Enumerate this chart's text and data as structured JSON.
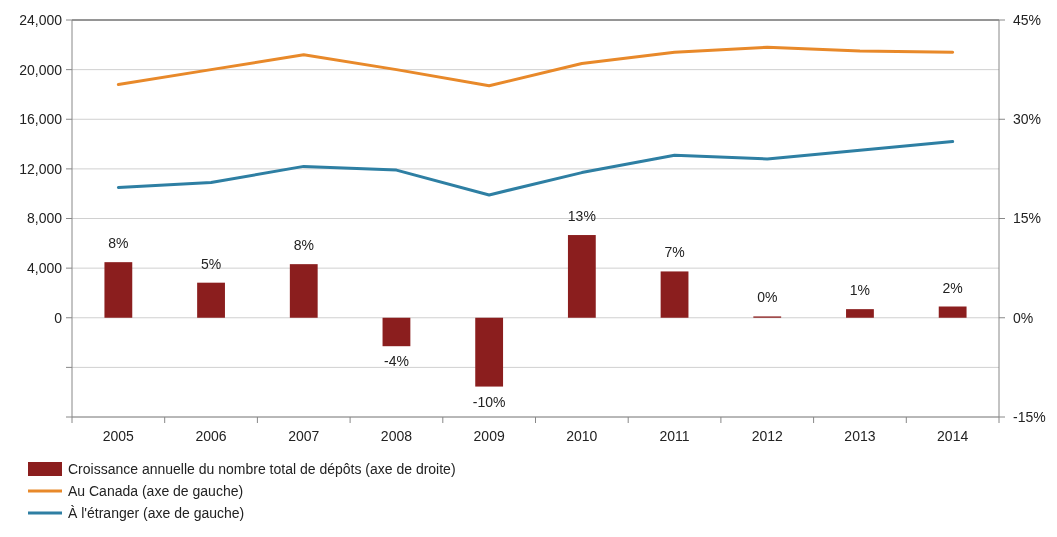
{
  "chart_data": {
    "type": "bar",
    "categories": [
      "2005",
      "2006",
      "2007",
      "2008",
      "2009",
      "2010",
      "2011",
      "2012",
      "2013",
      "2014"
    ],
    "series": [
      {
        "name": "Croissance annuelle du nombre total de dépôts (axe de droite)",
        "axis": "y2",
        "color": "#8b1e1e",
        "values": [
          8.4,
          5.3,
          8.1,
          -4.3,
          -10.4,
          12.5,
          7.0,
          0.2,
          1.3,
          1.7
        ],
        "value_labels": [
          "8%",
          "5%",
          "8%",
          "-4%",
          "-10%",
          "13%",
          "7%",
          "0%",
          "1%",
          "2%"
        ]
      },
      {
        "name": "Au Canada (axe de gauche)",
        "type": "line",
        "color": "#e8892a",
        "values": [
          18800,
          20000,
          21200,
          20000,
          18700,
          20500,
          21400,
          21800,
          21500,
          21400
        ]
      },
      {
        "name": "À l'étranger (axe de gauche)",
        "type": "line",
        "color": "#2e7fa3",
        "values": [
          10500,
          10900,
          12200,
          11900,
          9900,
          11700,
          13100,
          12800,
          13500,
          14200
        ]
      }
    ],
    "ylim": [
      -8000,
      24000
    ],
    "yticks": [
      {
        "value": -8000,
        "label": null
      },
      {
        "value": -4000,
        "label": null
      },
      {
        "value": 0,
        "label": "0"
      },
      {
        "value": 4000,
        "label": "4,000"
      },
      {
        "value": 8000,
        "label": "8,000"
      },
      {
        "value": 12000,
        "label": "12,000"
      },
      {
        "value": 16000,
        "label": "16,000"
      },
      {
        "value": 20000,
        "label": "20,000"
      },
      {
        "value": 24000,
        "label": "24,000"
      }
    ],
    "y2lim": [
      -15,
      45
    ],
    "y2ticks": [
      {
        "value": -15,
        "label": "-15%"
      },
      {
        "value": 0,
        "label": "0%"
      },
      {
        "value": 15,
        "label": "15%"
      },
      {
        "value": 30,
        "label": "30%"
      },
      {
        "value": 45,
        "label": "45%"
      }
    ],
    "grid": "y",
    "legend": "bottom"
  }
}
